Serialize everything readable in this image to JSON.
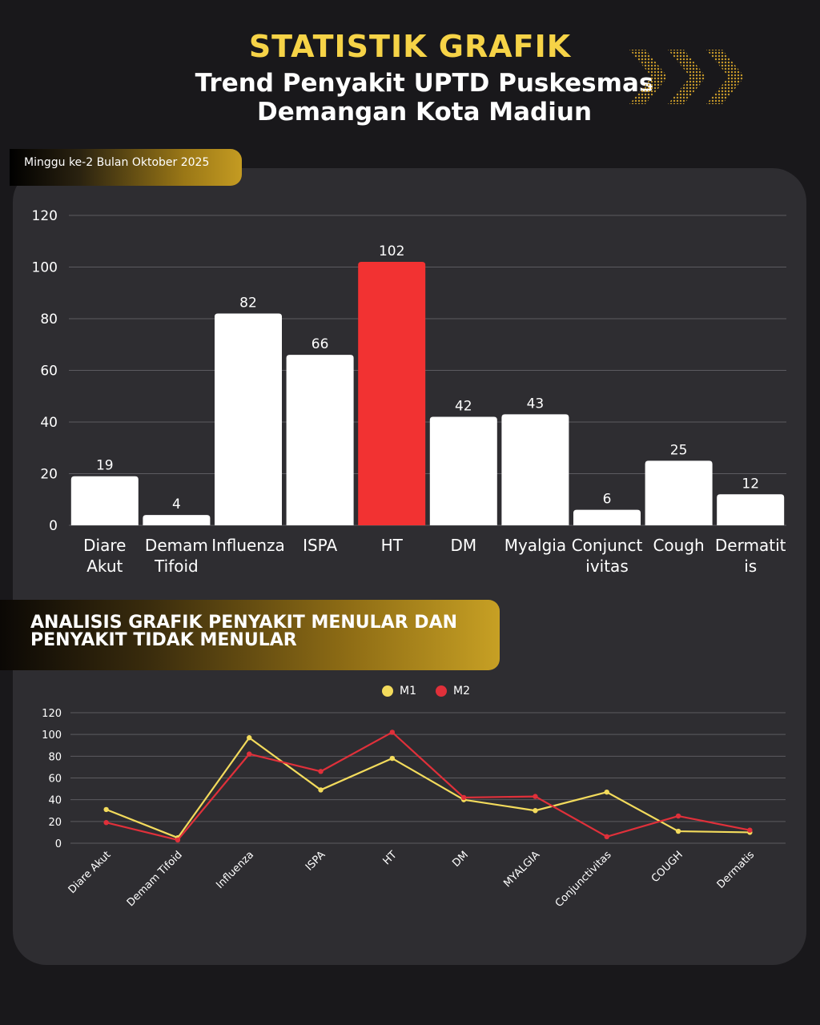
{
  "header": {
    "title": "STATISTIK GRAFIK",
    "subtitle_line1": "Trend Penyakit UPTD Puskesmas",
    "subtitle_line2": "Demangan Kota Madiun",
    "week_label": "Minggu ke-2 Bulan Oktober 2025"
  },
  "colors": {
    "accent": "#f6d347",
    "bar_default": "#ffffff",
    "bar_highlight": "#f23232",
    "series_m1": "#f3db5c",
    "series_m2": "#e0303a"
  },
  "section": {
    "title": "ANALISIS  GRAFIK   PENYAKIT   MENULAR DAN\nPENYAKIT  TIDAK MENULAR"
  },
  "chart_data": [
    {
      "type": "bar",
      "categories": [
        "Diare Akut",
        "Demam Tifoid",
        "Influenza",
        "ISPA",
        "HT",
        "DM",
        "Myalgia",
        "Conjunctivitas",
        "Cough",
        "Dermatitis"
      ],
      "category_label_lines": [
        [
          "Diare",
          "Akut"
        ],
        [
          "Demam",
          "Tifoid"
        ],
        [
          "Influenza"
        ],
        [
          "ISPA"
        ],
        [
          "HT"
        ],
        [
          "DM"
        ],
        [
          "Myalgia"
        ],
        [
          "Conjunct",
          "ivitas"
        ],
        [
          "Cough"
        ],
        [
          "Dermatit",
          "is"
        ]
      ],
      "values": [
        19,
        4,
        82,
        66,
        102,
        42,
        43,
        6,
        25,
        12
      ],
      "highlight_index": 4,
      "yticks": [
        0,
        20,
        40,
        60,
        80,
        100,
        120
      ],
      "ylim": [
        0,
        120
      ],
      "grid": true
    },
    {
      "type": "line",
      "categories": [
        "Diare Akut",
        "Demam Tifoid",
        "Influenza",
        "ISPA",
        "HT",
        "DM",
        "MYALGIA",
        "Conjunctivitas",
        "COUGH",
        "Dermatis"
      ],
      "series": [
        {
          "name": "M1",
          "values": [
            31,
            5,
            97,
            49,
            78,
            40,
            30,
            47,
            11,
            10
          ]
        },
        {
          "name": "M2",
          "values": [
            19,
            3,
            82,
            66,
            102,
            42,
            43,
            6,
            25,
            12
          ]
        }
      ],
      "yticks": [
        0,
        20,
        40,
        60,
        80,
        100,
        120
      ],
      "ylim": [
        0,
        120
      ],
      "legend": "top-center",
      "grid": true
    }
  ]
}
